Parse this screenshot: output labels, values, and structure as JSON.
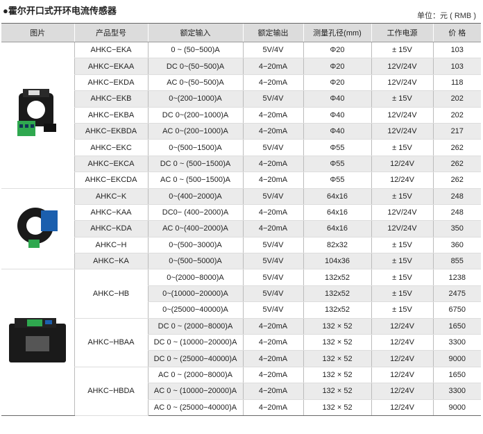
{
  "title": "●霍尔开口式开环电流传感器",
  "unit": "单位：元 ( RMB )",
  "headers": [
    "图片",
    "产品型号",
    "额定输入",
    "额定输出",
    "测量孔径(mm)",
    "工作电源",
    "价 格"
  ],
  "groups": [
    {
      "picture": "sensor-ek-icon",
      "models": [
        {
          "model": "AHKC−EKA",
          "rows": [
            [
              "0 ~ (50−500)A",
              "5V/4V",
              "Φ20",
              "± 15V",
              "103"
            ]
          ]
        },
        {
          "model": "AHKC−EKAA",
          "rows": [
            [
              "DC 0~(50−500)A",
              "4−20mA",
              "Φ20",
              "12V/24V",
              "103"
            ]
          ]
        },
        {
          "model": "AHKC−EKDA",
          "rows": [
            [
              "AC 0~(50−500)A",
              "4−20mA",
              "Φ20",
              "12V/24V",
              "118"
            ]
          ]
        },
        {
          "model": "AHKC−EKB",
          "rows": [
            [
              "0~(200−1000)A",
              "5V/4V",
              "Φ40",
              "± 15V",
              "202"
            ]
          ]
        },
        {
          "model": "AHKC−EKBA",
          "rows": [
            [
              "DC 0~(200−1000)A",
              "4−20mA",
              "Φ40",
              "12V/24V",
              "202"
            ]
          ]
        },
        {
          "model": "AHKC−EKBDA",
          "rows": [
            [
              "AC 0~(200−1000)A",
              "4−20mA",
              "Φ40",
              "12V/24V",
              "217"
            ]
          ]
        },
        {
          "model": "AHKC−EKC",
          "rows": [
            [
              "0~(500−1500)A",
              "5V/4V",
              "Φ55",
              "± 15V",
              "262"
            ]
          ]
        },
        {
          "model": "AHKC−EKCA",
          "rows": [
            [
              "DC 0 ~ (500−1500)A",
              "4−20mA",
              "Φ55",
              "12/24V",
              "262"
            ]
          ]
        },
        {
          "model": "AHKC−EKCDA",
          "rows": [
            [
              "AC 0 ~ (500−1500)A",
              "4−20mA",
              "Φ55",
              "12/24V",
              "262"
            ]
          ]
        }
      ]
    },
    {
      "picture": "sensor-k-icon",
      "models": [
        {
          "model": "AHKC−K",
          "rows": [
            [
              "0~(400−2000)A",
              "5V/4V",
              "64x16",
              "± 15V",
              "248"
            ]
          ]
        },
        {
          "model": "AHKC−KAA",
          "rows": [
            [
              "DC0− (400−2000)A",
              "4−20mA",
              "64x16",
              "12V/24V",
              "248"
            ]
          ]
        },
        {
          "model": "AHKC−KDA",
          "rows": [
            [
              "AC 0~(400−2000)A",
              "4−20mA",
              "64x16",
              "12V/24V",
              "350"
            ]
          ]
        },
        {
          "model": "AHKC−H",
          "rows": [
            [
              "0~(500−3000)A",
              "5V/4V",
              "82x32",
              "± 15V",
              "360"
            ]
          ]
        },
        {
          "model": "AHKC−KA",
          "rows": [
            [
              "0~(500−5000)A",
              "5V/4V",
              "104x36",
              "± 15V",
              "855"
            ]
          ]
        }
      ]
    },
    {
      "picture": "sensor-hb-icon",
      "models": [
        {
          "model": "AHKC−HB",
          "rows": [
            [
              "0~(2000−8000)A",
              "5V/4V",
              "132x52",
              "± 15V",
              "1238"
            ],
            [
              "0~(10000−20000)A",
              "5V/4V",
              "132x52",
              "± 15V",
              "2475"
            ],
            [
              "0~(25000−40000)A",
              "5V/4V",
              "132x52",
              "± 15V",
              "6750"
            ]
          ]
        },
        {
          "model": "AHKC−HBAA",
          "rows": [
            [
              "DC 0 ~ (2000−8000)A",
              "4−20mA",
              "132 × 52",
              "12/24V",
              "1650"
            ],
            [
              "DC 0 ~ (10000−20000)A",
              "4−20mA",
              "132 × 52",
              "12/24V",
              "3300"
            ],
            [
              "DC 0 ~ (25000−40000)A",
              "4−20mA",
              "132 × 52",
              "12/24V",
              "9000"
            ]
          ]
        },
        {
          "model": "AHKC−HBDA",
          "rows": [
            [
              "AC 0 ~ (2000−8000)A",
              "4−20mA",
              "132 × 52",
              "12/24V",
              "1650"
            ],
            [
              "AC 0 ~ (10000−20000)A",
              "4−20mA",
              "132 × 52",
              "12/24V",
              "3300"
            ],
            [
              "AC 0 ~ (25000−40000)A",
              "4−20mA",
              "132 × 52",
              "12/24V",
              "9000"
            ]
          ]
        }
      ]
    }
  ]
}
